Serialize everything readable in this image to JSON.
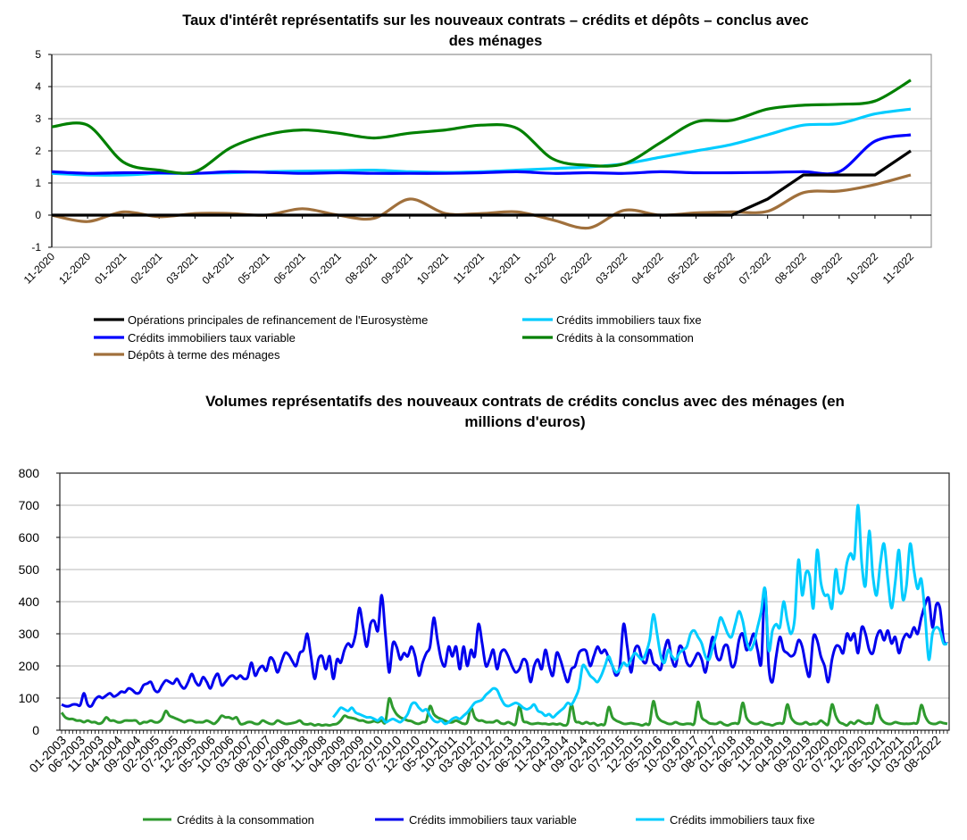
{
  "chart_data": [
    {
      "type": "line",
      "title": [
        "Taux d'intérêt représentatifs sur les nouveaux contrats – crédits et dépôts – conclus avec",
        "des ménages"
      ],
      "xlabel": "",
      "ylabel": "",
      "ylim": [
        -1,
        5
      ],
      "yticks": [
        "-1",
        "0",
        "1",
        "2",
        "3",
        "4",
        "5"
      ],
      "grid": true,
      "legend_position": "bottom",
      "categories": [
        "11-2020",
        "12-2020",
        "01-2021",
        "02-2021",
        "03-2021",
        "04-2021",
        "05-2021",
        "06-2021",
        "07-2021",
        "08-2021",
        "09-2021",
        "10-2021",
        "11-2021",
        "12-2021",
        "01-2022",
        "02-2022",
        "03-2022",
        "04-2022",
        "05-2022",
        "06-2022",
        "07-2022",
        "08-2022",
        "09-2022",
        "10-2022",
        "11-2022"
      ],
      "series": [
        {
          "name": "Opérations principales de refinancement de l'Eurosystème",
          "color": "#000000",
          "values": [
            0,
            0,
            0,
            0,
            0,
            0,
            0,
            0,
            0,
            0,
            0,
            0,
            0,
            0,
            0,
            0,
            0,
            0,
            0,
            0,
            0.5,
            1.25,
            1.25,
            1.25,
            2.0
          ]
        },
        {
          "name": "Crédits immobiliers taux fixe",
          "color": "#00ccff",
          "values": [
            1.3,
            1.25,
            1.25,
            1.3,
            1.3,
            1.32,
            1.35,
            1.37,
            1.38,
            1.4,
            1.35,
            1.33,
            1.35,
            1.4,
            1.45,
            1.5,
            1.6,
            1.8,
            2.0,
            2.2,
            2.5,
            2.8,
            2.85,
            3.15,
            3.3
          ]
        },
        {
          "name": "Crédits immobiliers taux variable",
          "color": "#0000ff",
          "values": [
            1.35,
            1.3,
            1.32,
            1.32,
            1.3,
            1.35,
            1.33,
            1.3,
            1.32,
            1.3,
            1.3,
            1.3,
            1.32,
            1.35,
            1.3,
            1.32,
            1.3,
            1.35,
            1.32,
            1.32,
            1.33,
            1.35,
            1.35,
            2.3,
            2.5
          ]
        },
        {
          "name": "Crédits à la consommation",
          "color": "#008000",
          "values": [
            2.75,
            2.8,
            1.65,
            1.4,
            1.35,
            2.1,
            2.5,
            2.65,
            2.55,
            2.4,
            2.55,
            2.65,
            2.8,
            2.7,
            1.75,
            1.55,
            1.6,
            2.25,
            2.9,
            2.95,
            3.3,
            3.42,
            3.45,
            3.55,
            4.2
          ]
        },
        {
          "name": "Dépôts à terme des ménages",
          "color": "#a0703c",
          "values": [
            0,
            -0.2,
            0.1,
            -0.05,
            0.05,
            0.05,
            0,
            0.2,
            0,
            -0.1,
            0.5,
            0.05,
            0.05,
            0.1,
            -0.15,
            -0.4,
            0.15,
            0,
            0.07,
            0.1,
            0.12,
            0.7,
            0.75,
            0.95,
            1.25
          ]
        }
      ]
    },
    {
      "type": "line",
      "title": [
        "Volumes représentatifs des nouveaux contrats de crédits conclus avec des ménages (en",
        "millions d'euros)"
      ],
      "xlabel": "",
      "ylabel": "",
      "ylim": [
        0,
        800
      ],
      "yticks": [
        "0",
        "100",
        "200",
        "300",
        "400",
        "500",
        "600",
        "700",
        "800"
      ],
      "grid": true,
      "legend_position": "bottom",
      "x_start": "01-2003",
      "x_end": "11-2022",
      "frequency": "monthly",
      "xtick_labels": [
        "01-2003",
        "06-2003",
        "11-2003",
        "04-2004",
        "09-2004",
        "02-2005",
        "07-2005",
        "12-2005",
        "05-2006",
        "10-2006",
        "03-2007",
        "08-2007",
        "01-2008",
        "06-2008",
        "11-2008",
        "04-2009",
        "09-2009",
        "02-2010",
        "07-2010",
        "12-2010",
        "05-2011",
        "10-2011",
        "03-2012",
        "08-2012",
        "01-2013",
        "06-2013",
        "11-2013",
        "04-2014",
        "09-2014",
        "02-2015",
        "07-2015",
        "12-2015",
        "05-2016",
        "10-2016",
        "03-2017",
        "08-2017",
        "01-2018",
        "06-2018",
        "11-2018",
        "04-2019",
        "09-2019",
        "02-2020",
        "07-2020",
        "12-2020",
        "05-2021",
        "10-2021",
        "03-2022",
        "08-2022"
      ],
      "series": [
        {
          "name": "Crédits à la consommation",
          "color": "#2e9a2e",
          "values": [
            55,
            40,
            35,
            35,
            30,
            30,
            25,
            30,
            25,
            25,
            20,
            25,
            40,
            30,
            30,
            25,
            25,
            30,
            30,
            30,
            30,
            20,
            25,
            25,
            30,
            25,
            25,
            35,
            60,
            45,
            40,
            35,
            30,
            25,
            30,
            30,
            25,
            25,
            25,
            30,
            25,
            20,
            30,
            45,
            40,
            40,
            35,
            40,
            20,
            20,
            25,
            25,
            20,
            20,
            30,
            25,
            20,
            20,
            30,
            25,
            20,
            20,
            22,
            25,
            30,
            20,
            18,
            20,
            15,
            18,
            15,
            17,
            15,
            18,
            20,
            30,
            45,
            40,
            38,
            35,
            30,
            30,
            25,
            25,
            28,
            25,
            30,
            25,
            98,
            70,
            50,
            40,
            35,
            30,
            28,
            22,
            20,
            25,
            30,
            75,
            50,
            40,
            35,
            30,
            25,
            25,
            30,
            25,
            20,
            25,
            70,
            40,
            30,
            30,
            25,
            25,
            25,
            30,
            22,
            20,
            25,
            20,
            20,
            75,
            30,
            25,
            20,
            20,
            22,
            20,
            20,
            18,
            20,
            18,
            20,
            15,
            22,
            80,
            30,
            25,
            20,
            25,
            20,
            22,
            15,
            18,
            20,
            72,
            40,
            30,
            25,
            20,
            20,
            22,
            20,
            18,
            15,
            20,
            22,
            90,
            45,
            30,
            25,
            20,
            20,
            25,
            20,
            18,
            20,
            20,
            22,
            88,
            40,
            30,
            22,
            20,
            20,
            25,
            18,
            15,
            20,
            22,
            25,
            85,
            40,
            25,
            20,
            20,
            25,
            20,
            18,
            15,
            20,
            22,
            25,
            80,
            40,
            25,
            20,
            20,
            25,
            18,
            20,
            20,
            30,
            22,
            20,
            80,
            45,
            25,
            20,
            15,
            25,
            20,
            30,
            25,
            20,
            22,
            25,
            78,
            40,
            25,
            20,
            20,
            25,
            22,
            20,
            20,
            20,
            22,
            25,
            78,
            45,
            25,
            20,
            20,
            25,
            22,
            20
          ]
        },
        {
          "name": "Crédits immobiliers taux variable",
          "color": "#0000ee",
          "values": [
            80,
            75,
            75,
            80,
            80,
            78,
            115,
            80,
            75,
            95,
            105,
            100,
            108,
            115,
            105,
            110,
            120,
            118,
            130,
            125,
            115,
            118,
            140,
            145,
            150,
            125,
            120,
            140,
            155,
            150,
            145,
            160,
            140,
            130,
            150,
            175,
            150,
            140,
            165,
            150,
            130,
            160,
            175,
            140,
            150,
            165,
            170,
            160,
            170,
            160,
            165,
            210,
            170,
            190,
            200,
            185,
            225,
            215,
            180,
            210,
            240,
            235,
            215,
            200,
            240,
            250,
            300,
            230,
            160,
            220,
            230,
            190,
            230,
            160,
            220,
            210,
            250,
            270,
            260,
            300,
            380,
            320,
            260,
            330,
            340,
            310,
            420,
            300,
            180,
            270,
            260,
            220,
            240,
            230,
            260,
            230,
            170,
            210,
            240,
            260,
            350,
            280,
            220,
            200,
            260,
            230,
            260,
            190,
            260,
            200,
            250,
            230,
            330,
            270,
            200,
            220,
            250,
            190,
            240,
            250,
            230,
            200,
            180,
            190,
            220,
            210,
            150,
            200,
            220,
            190,
            250,
            200,
            170,
            240,
            220,
            180,
            150,
            190,
            200,
            240,
            250,
            245,
            200,
            230,
            260,
            240,
            250,
            225,
            200,
            170,
            200,
            330,
            260,
            180,
            250,
            260,
            220,
            210,
            250,
            210,
            200,
            190,
            250,
            280,
            220,
            200,
            260,
            250,
            210,
            200,
            220,
            240,
            220,
            180,
            240,
            290,
            230,
            220,
            260,
            260,
            200,
            210,
            280,
            300,
            250,
            270,
            300,
            250,
            210,
            440,
            200,
            150,
            230,
            290,
            250,
            240,
            230,
            240,
            280,
            260,
            200,
            170,
            290,
            280,
            230,
            200,
            150,
            220,
            260,
            260,
            240,
            300,
            280,
            300,
            240,
            320,
            300,
            250,
            240,
            290,
            310,
            280,
            310,
            270,
            290,
            240,
            280,
            300,
            290,
            320,
            300,
            350,
            390,
            410,
            320,
            390,
            380,
            280,
            270
          ]
        },
        {
          "name": "Crédits immobiliers taux fixe",
          "color": "#00ccff",
          "values": [
            null,
            null,
            null,
            null,
            null,
            null,
            null,
            null,
            null,
            null,
            null,
            null,
            null,
            null,
            null,
            null,
            null,
            null,
            null,
            null,
            null,
            null,
            null,
            null,
            null,
            null,
            null,
            null,
            null,
            null,
            null,
            null,
            null,
            null,
            null,
            null,
            null,
            null,
            null,
            null,
            null,
            null,
            null,
            null,
            null,
            null,
            null,
            null,
            null,
            null,
            null,
            null,
            null,
            null,
            null,
            null,
            null,
            null,
            null,
            null,
            null,
            null,
            null,
            null,
            null,
            null,
            null,
            null,
            null,
            null,
            null,
            null,
            null,
            40,
            55,
            70,
            65,
            60,
            70,
            55,
            50,
            45,
            40,
            40,
            35,
            30,
            40,
            25,
            30,
            35,
            30,
            25,
            35,
            50,
            80,
            85,
            70,
            60,
            65,
            45,
            30,
            25,
            30,
            20,
            25,
            35,
            40,
            35,
            45,
            55,
            70,
            85,
            90,
            95,
            110,
            120,
            130,
            125,
            100,
            80,
            75,
            80,
            85,
            80,
            70,
            65,
            70,
            80,
            60,
            55,
            45,
            50,
            40,
            50,
            60,
            70,
            85,
            80,
            100,
            130,
            200,
            190,
            170,
            160,
            150,
            170,
            200,
            230,
            200,
            180,
            190,
            210,
            200,
            220,
            240,
            230,
            220,
            240,
            280,
            360,
            300,
            230,
            210,
            250,
            230,
            220,
            240,
            250,
            260,
            300,
            310,
            290,
            270,
            230,
            220,
            260,
            300,
            350,
            330,
            300,
            290,
            330,
            370,
            340,
            280,
            250,
            270,
            320,
            370,
            440,
            250,
            310,
            330,
            320,
            400,
            340,
            300,
            350,
            530,
            420,
            490,
            480,
            380,
            560,
            460,
            420,
            420,
            380,
            500,
            430,
            440,
            520,
            550,
            540,
            700,
            520,
            450,
            620,
            480,
            420,
            520,
            580,
            470,
            380,
            460,
            560,
            410,
            450,
            580,
            500,
            440,
            470,
            360,
            220,
            300,
            320,
            310,
            270,
            270
          ]
        }
      ]
    }
  ]
}
